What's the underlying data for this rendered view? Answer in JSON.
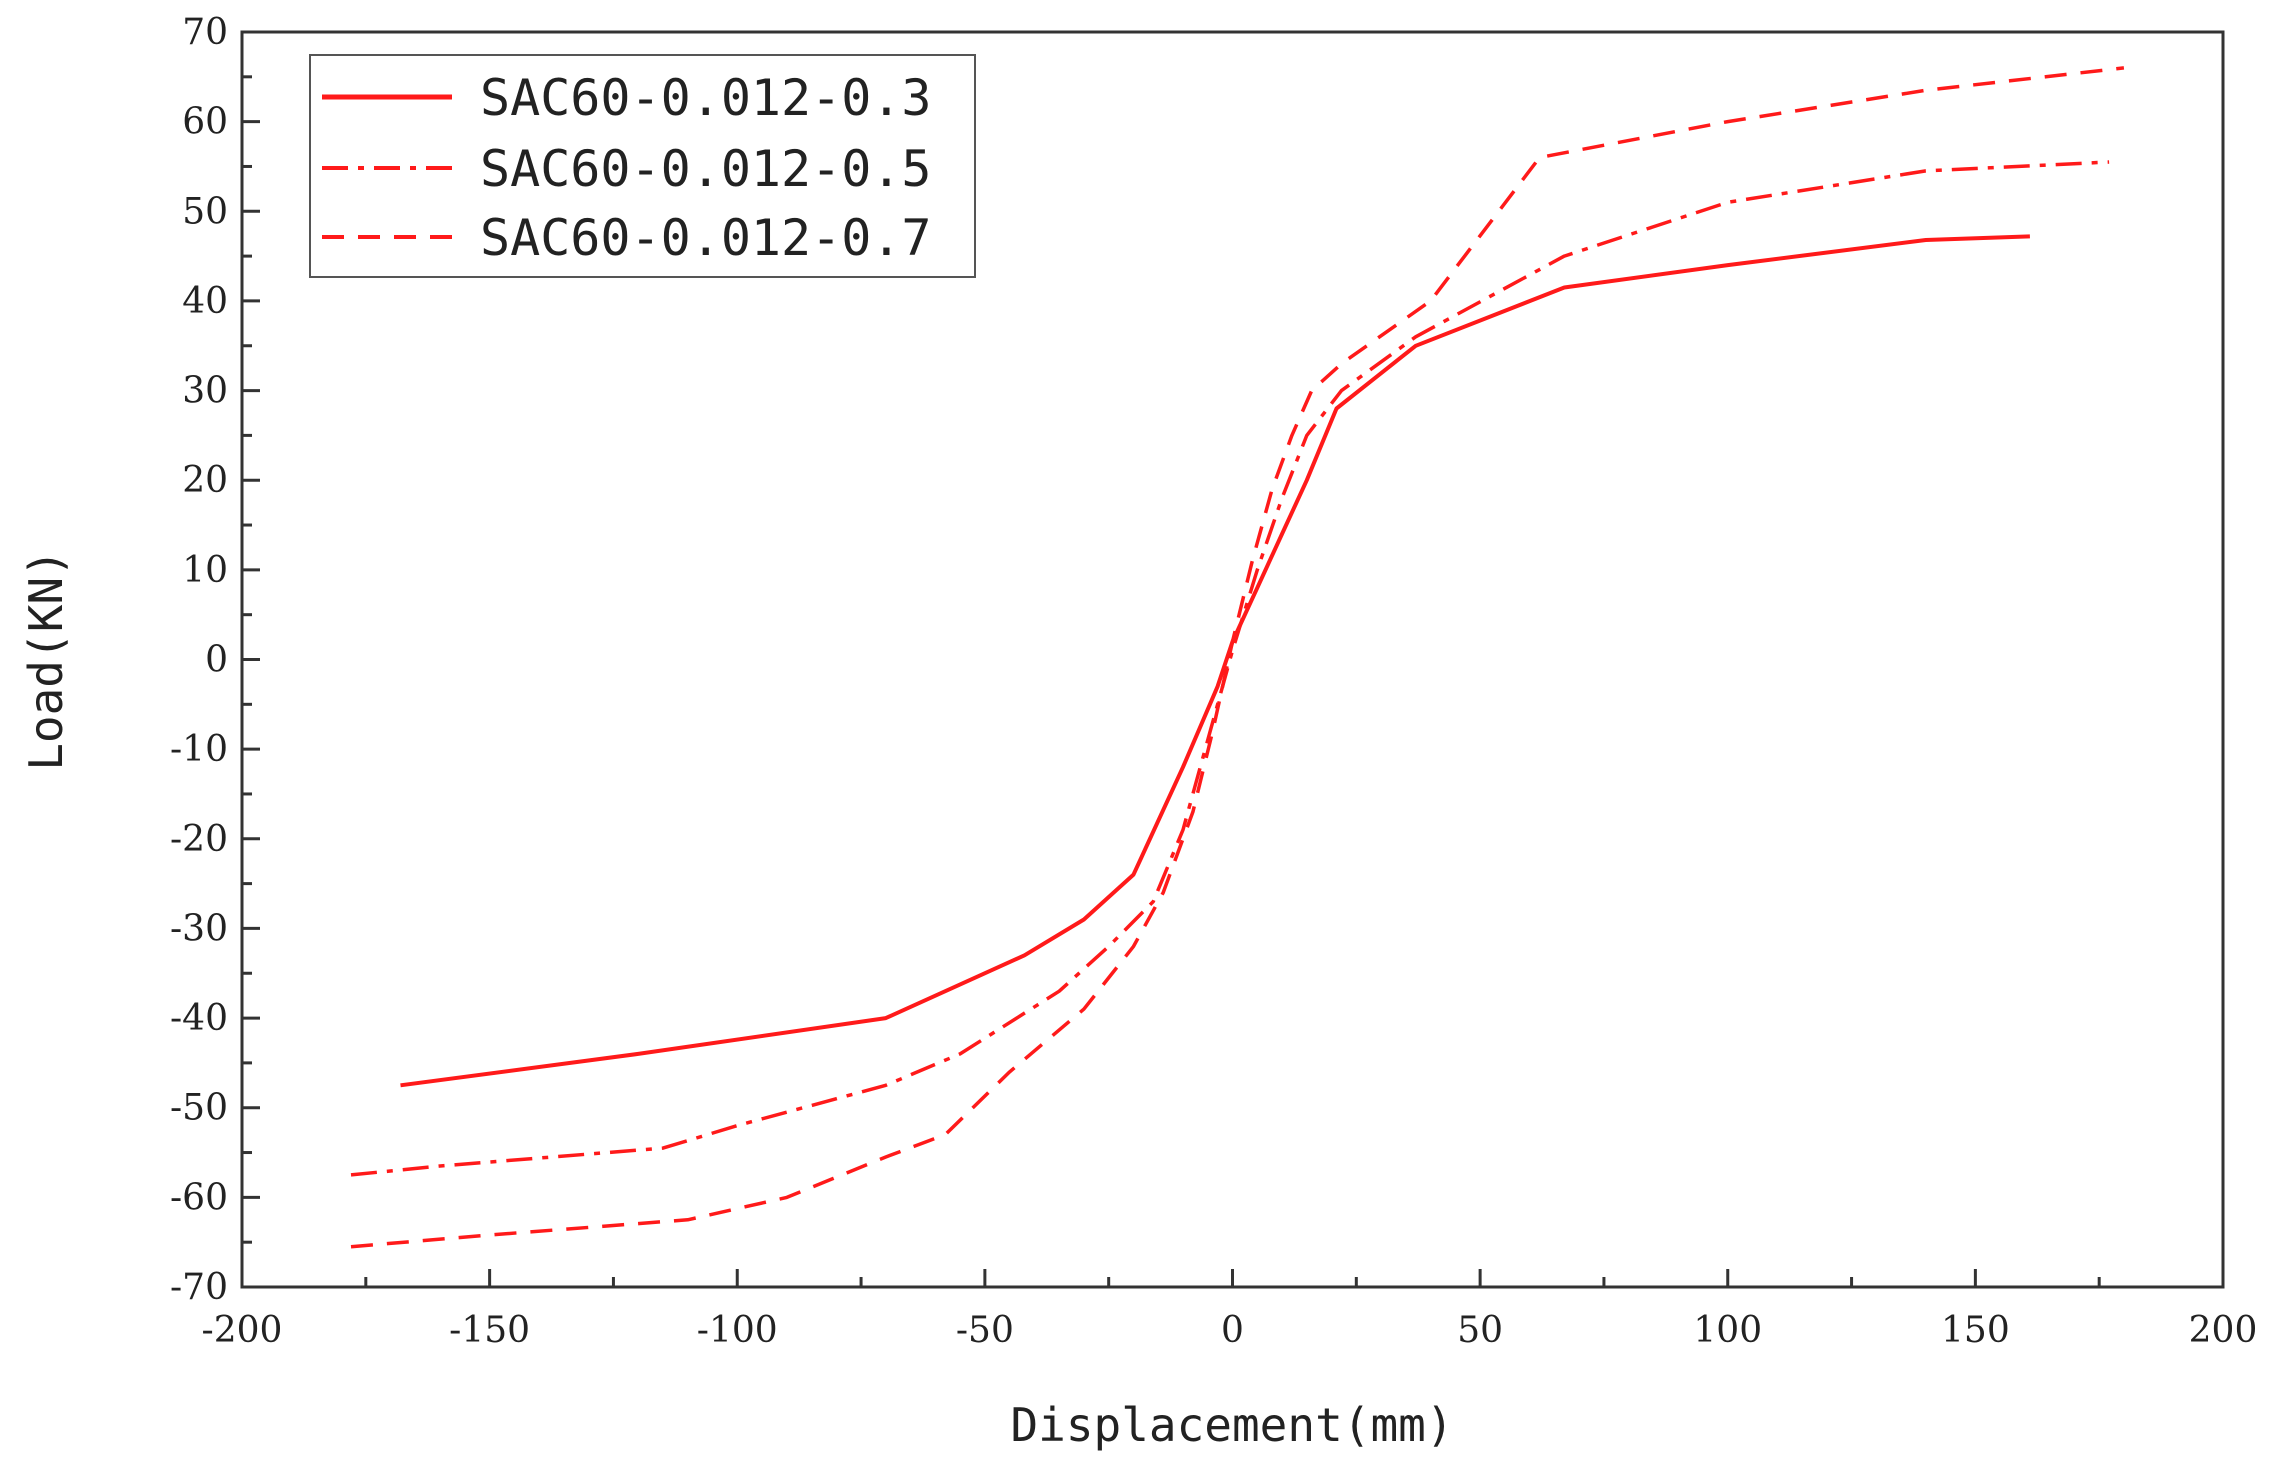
{
  "chart_data": {
    "type": "line",
    "xlabel": "Displacement(mm)",
    "ylabel": "Load(KN)",
    "xlim": [
      -200,
      200
    ],
    "ylim": [
      -70,
      70
    ],
    "x_ticks": [
      -200,
      -150,
      -100,
      -50,
      0,
      50,
      100,
      150,
      200
    ],
    "y_ticks": [
      70,
      60,
      50,
      40,
      30,
      20,
      10,
      0,
      -10,
      -20,
      -30,
      -40,
      -50,
      -60,
      -70
    ],
    "grid": false,
    "legend_position": "top-left",
    "series": [
      {
        "name": "SAC60-0.012-0.3",
        "style": "solid",
        "color": "#ff1a1a",
        "points": [
          [
            -168,
            -47.5
          ],
          [
            -120,
            -44
          ],
          [
            -70,
            -40
          ],
          [
            -42,
            -33
          ],
          [
            -30,
            -29
          ],
          [
            -20,
            -24
          ],
          [
            -10,
            -12
          ],
          [
            -3,
            -3
          ],
          [
            0,
            2
          ],
          [
            5,
            8
          ],
          [
            10,
            14
          ],
          [
            15,
            20
          ],
          [
            21,
            28
          ],
          [
            37,
            35
          ],
          [
            67,
            41.5
          ],
          [
            100,
            44
          ],
          [
            140,
            46.8
          ],
          [
            161,
            47.2
          ]
        ]
      },
      {
        "name": "SAC60-0.012-0.5",
        "style": "dashdot",
        "color": "#ff1a1a",
        "points": [
          [
            -178,
            -57.5
          ],
          [
            -160,
            -56.5
          ],
          [
            -115,
            -54.5
          ],
          [
            -100,
            -52
          ],
          [
            -70,
            -47.5
          ],
          [
            -55,
            -44
          ],
          [
            -35,
            -37
          ],
          [
            -25,
            -32
          ],
          [
            -16,
            -27
          ],
          [
            -10,
            -19
          ],
          [
            -5,
            -9
          ],
          [
            0,
            1
          ],
          [
            5,
            10
          ],
          [
            10,
            18
          ],
          [
            15,
            25
          ],
          [
            22,
            30
          ],
          [
            37,
            36
          ],
          [
            67,
            45
          ],
          [
            100,
            51
          ],
          [
            140,
            54.5
          ],
          [
            177,
            55.5
          ]
        ]
      },
      {
        "name": "SAC60-0.012-0.7",
        "style": "dashed",
        "color": "#ff1a1a",
        "points": [
          [
            -178,
            -65.5
          ],
          [
            -150,
            -64.2
          ],
          [
            -110,
            -62.5
          ],
          [
            -90,
            -60
          ],
          [
            -70,
            -55.5
          ],
          [
            -58,
            -53
          ],
          [
            -45,
            -46
          ],
          [
            -30,
            -39
          ],
          [
            -20,
            -32
          ],
          [
            -14,
            -26
          ],
          [
            -8,
            -17
          ],
          [
            -4,
            -8
          ],
          [
            0,
            2
          ],
          [
            4,
            11
          ],
          [
            8,
            19
          ],
          [
            12,
            25
          ],
          [
            16,
            30
          ],
          [
            22,
            33
          ],
          [
            40,
            40
          ],
          [
            62,
            56
          ],
          [
            100,
            60
          ],
          [
            140,
            63.5
          ],
          [
            180,
            66
          ]
        ]
      }
    ]
  }
}
